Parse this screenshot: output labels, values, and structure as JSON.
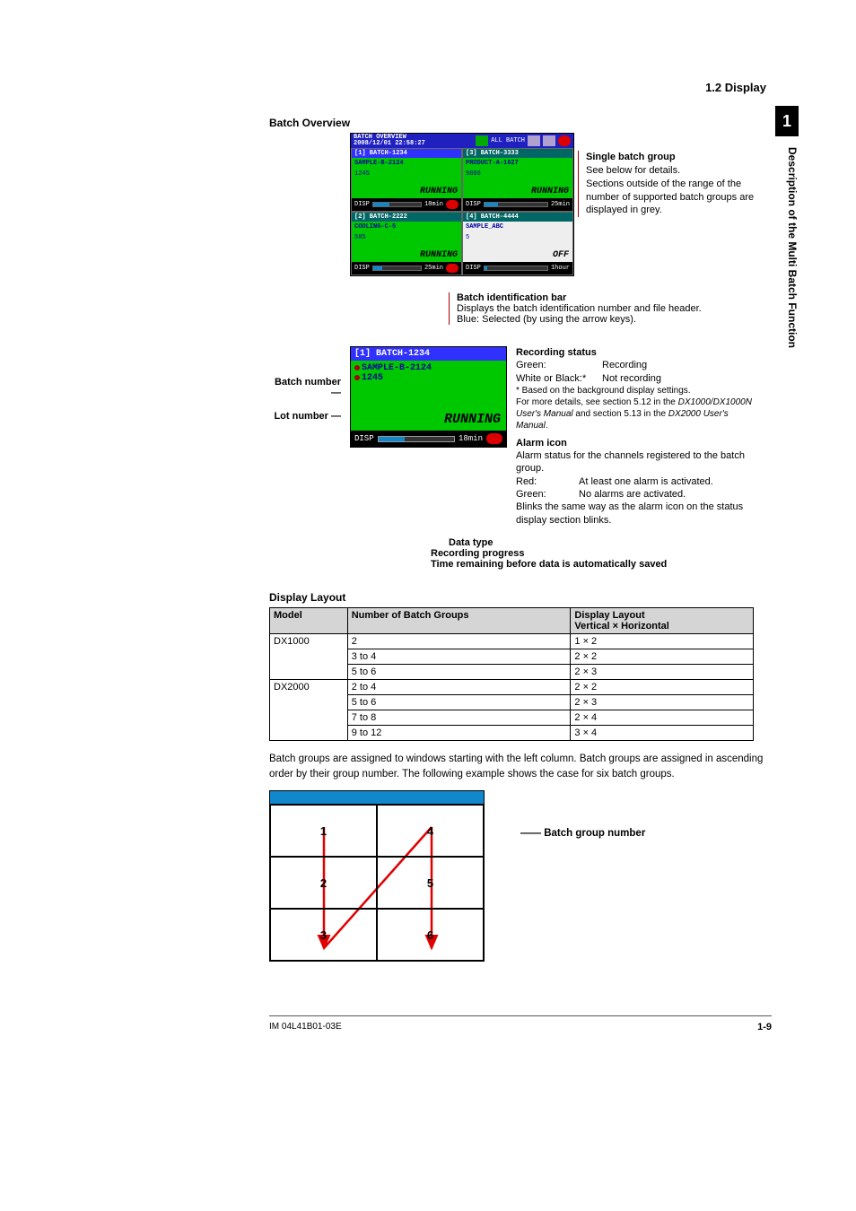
{
  "header": {
    "section": "1.2  Display",
    "chapter_number": "1",
    "side_title": "Description of the Multi Batch Function"
  },
  "batch_overview": {
    "heading": "Batch Overview",
    "titlebar": {
      "title_line1": "BATCH OVERVIEW",
      "title_line2": "2008/12/01 22:58:27",
      "right_label": "ALL BATCH"
    },
    "cells": [
      {
        "id": "[1] BATCH-1234",
        "sample": "SAMPLE-B-2124",
        "lot": "1245",
        "status": "RUNNING",
        "idbar_color": "#3030ff",
        "body_color": "#00c800",
        "disp_label": "DISP",
        "time": "18min",
        "fill_pct": 35,
        "alarm": true
      },
      {
        "id": "[3] BATCH-3333",
        "sample": "PRODUCT-A-1027",
        "lot": "9806",
        "status": "RUNNING",
        "idbar_color": "#006666",
        "body_color": "#00c800",
        "disp_label": "DISP",
        "time": "25min",
        "fill_pct": 22,
        "alarm": false
      },
      {
        "id": "[2] BATCH-2222",
        "sample": "COOLING-C-5",
        "lot": "585",
        "status": "RUNNING",
        "idbar_color": "#006666",
        "body_color": "#00c800",
        "disp_label": "DISP",
        "time": "25min",
        "fill_pct": 20,
        "alarm": true
      },
      {
        "id": "[4] BATCH-4444",
        "sample": "SAMPLE_ABC",
        "lot": "5",
        "status": "OFF",
        "idbar_color": "#006666",
        "body_color": "#eeeeee",
        "disp_label": "DISP",
        "time": "1hour",
        "fill_pct": 5,
        "alarm": false
      }
    ],
    "annotation": {
      "title": "Single batch group",
      "line1": "See below for details.",
      "line2": "Sections outside of the range of the number of supported batch groups are displayed in grey."
    }
  },
  "detail": {
    "left_labels": {
      "batch_number": "Batch number",
      "lot_number": "Lot number"
    },
    "panel": {
      "id": "[1] BATCH-1234",
      "sample": "SAMPLE-B-2124",
      "lot": "1245",
      "status": "RUNNING",
      "disp_label": "DISP",
      "time": "18min",
      "fill_pct": 35
    },
    "callouts": {
      "id_bar": {
        "title": "Batch identification bar",
        "l1": "Displays the batch identification number and file header.",
        "l2": "Blue: Selected (by using the arrow keys)."
      },
      "recording": {
        "title": "Recording status",
        "rows": [
          [
            "Green:",
            "Recording"
          ],
          [
            "White or Black:*",
            "Not recording"
          ]
        ],
        "note1": "* Based on the background display settings.",
        "note2a": "For more details, see section 5.12 in the ",
        "note2b": "DX1000/DX1000N User's Manual",
        "note2c": " and section 5.13 in the ",
        "note2d": "DX2000 User's Manual",
        "note2e": "."
      },
      "alarm": {
        "title": "Alarm icon",
        "l1": "Alarm status for the channels registered to the batch group.",
        "rows": [
          [
            "Red:",
            "At least one alarm is activated."
          ],
          [
            "Green:",
            "No alarms are activated."
          ]
        ],
        "l2": "Blinks the same way as the alarm icon on the status display section blinks."
      },
      "below": {
        "data_type": "Data type",
        "rec_progress": "Recording progress",
        "time_remain": "Time remaining before data is automatically saved"
      }
    }
  },
  "layout_table": {
    "heading": "Display Layout",
    "headers": {
      "model": "Model",
      "groups": "Number of Batch Groups",
      "layout": "Display Layout",
      "layout_sub": "Vertical × Horizontal"
    },
    "models": [
      {
        "name": "DX1000",
        "rows": [
          [
            "2",
            "1 × 2"
          ],
          [
            "3 to 4",
            "2 × 2"
          ],
          [
            "5 to 6",
            "2 × 3"
          ]
        ]
      },
      {
        "name": "DX2000",
        "rows": [
          [
            "2 to 4",
            "2 × 2"
          ],
          [
            "5 to 6",
            "2 × 3"
          ],
          [
            "7 to 8",
            "2 × 4"
          ],
          [
            "9 to 12",
            "3 × 4"
          ]
        ]
      }
    ]
  },
  "paragraph": "Batch groups are assigned to windows starting with the left column. Batch groups are assigned in ascending order by their group number. The following example shows the case for six batch groups.",
  "grid_diagram": {
    "cells": [
      "1",
      "4",
      "2",
      "5",
      "3",
      "6"
    ],
    "label": "Batch group number",
    "arrow_color": "#e00000"
  },
  "footer": {
    "left": "IM 04L41B01-03E",
    "right": "1-9"
  }
}
